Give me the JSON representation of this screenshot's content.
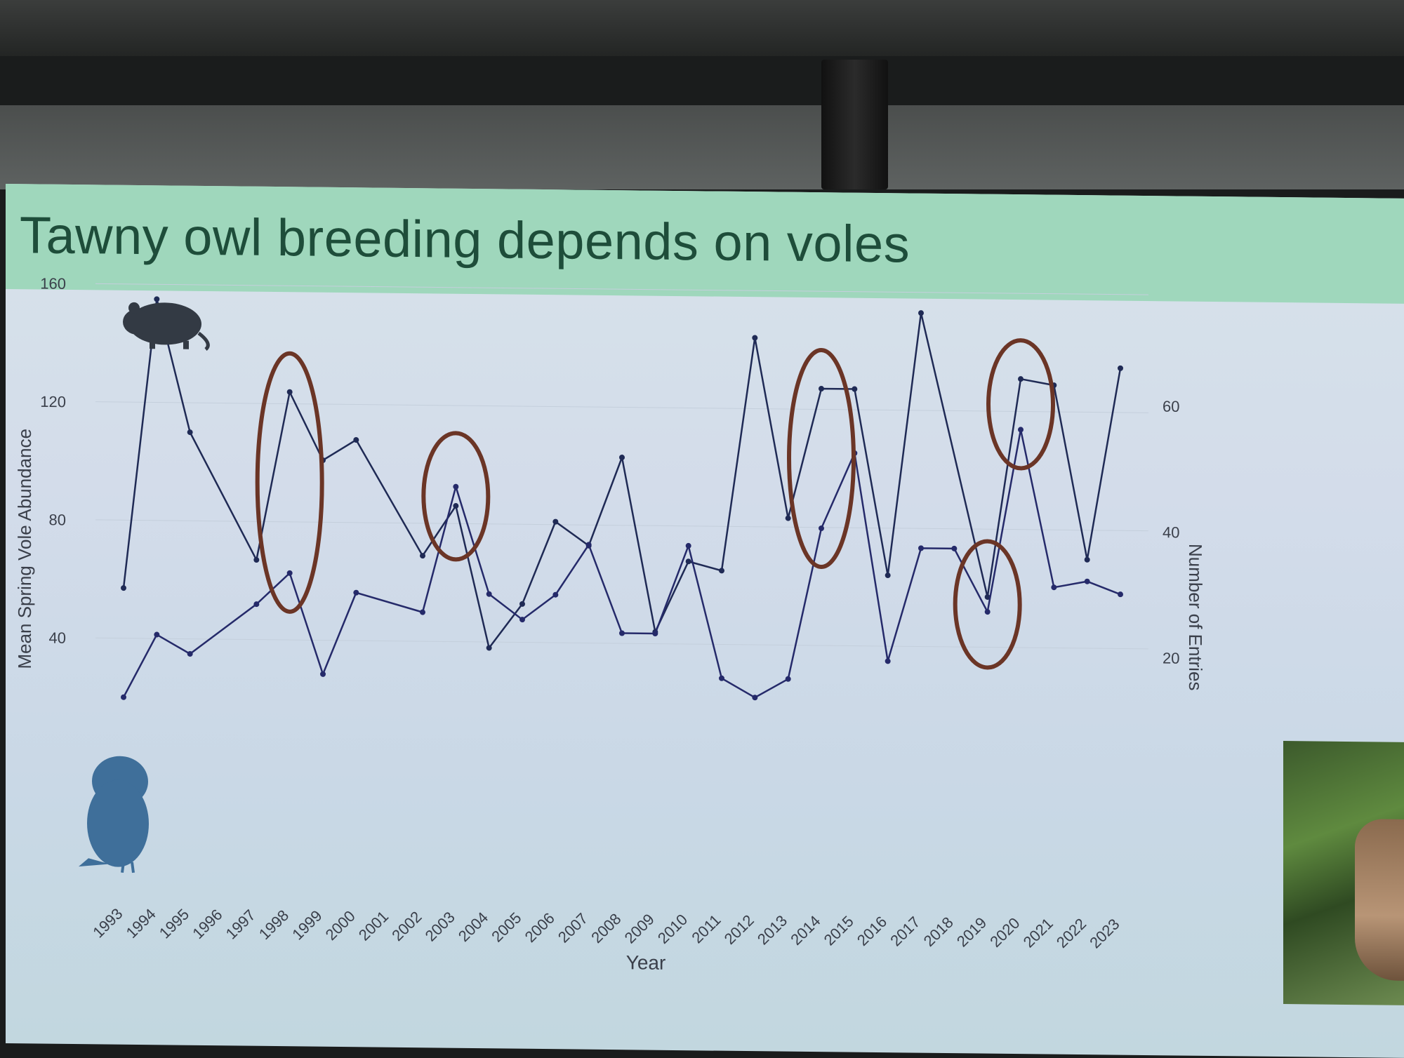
{
  "slide": {
    "title": "Tawny owl breeding depends on voles"
  },
  "colors": {
    "title_band": "#9fd7bc",
    "title_text": "#1e4d3a",
    "vole_series": "#1f2a55",
    "owl_series": "#252a6a",
    "highlight_circle": "#6b3526",
    "vole_icon": "#333a44",
    "owl_icon": "#3f6f9a"
  },
  "icons": {
    "vole": "vole-silhouette-icon",
    "owl": "owl-silhouette-icon"
  },
  "chart_data": {
    "type": "line",
    "xlabel": "Year",
    "ylabel_left": "Mean Spring Vole Abundance",
    "ylabel_right": "Number of Entries",
    "left_ticks": [
      40,
      80,
      120,
      160
    ],
    "right_ticks": [
      20,
      40,
      60
    ],
    "ylim_left": [
      20,
      165
    ],
    "ylim_right": [
      12,
      80
    ],
    "categories": [
      "1993",
      "1994",
      "1995",
      "1996",
      "1997",
      "1998",
      "1999",
      "2000",
      "2001",
      "2002",
      "2003",
      "2004",
      "2005",
      "2006",
      "2007",
      "2008",
      "2009",
      "2010",
      "2011",
      "2012",
      "2013",
      "2014",
      "2015",
      "2016",
      "2017",
      "2018",
      "2019",
      "2020",
      "2021",
      "2022",
      "2023"
    ],
    "series": [
      {
        "axis": "left",
        "values": [
          57,
          155,
          110,
          null,
          67,
          124,
          101,
          108,
          null,
          69,
          86,
          38,
          53,
          81,
          73,
          103,
          44,
          68,
          65,
          144,
          83,
          127,
          127,
          64,
          153,
          null,
          57,
          131,
          129,
          70,
          135
        ]
      },
      {
        "axis": "right",
        "values": [
          12,
          22,
          19,
          null,
          27,
          32,
          16,
          29,
          null,
          26,
          46,
          29,
          25,
          29,
          37,
          23,
          23,
          37,
          16,
          13,
          16,
          40,
          52,
          19,
          37,
          37,
          27,
          56,
          31,
          32,
          30
        ]
      }
    ],
    "highlights": [
      "1998",
      "2003",
      "2014",
      "2019",
      "2020"
    ]
  }
}
